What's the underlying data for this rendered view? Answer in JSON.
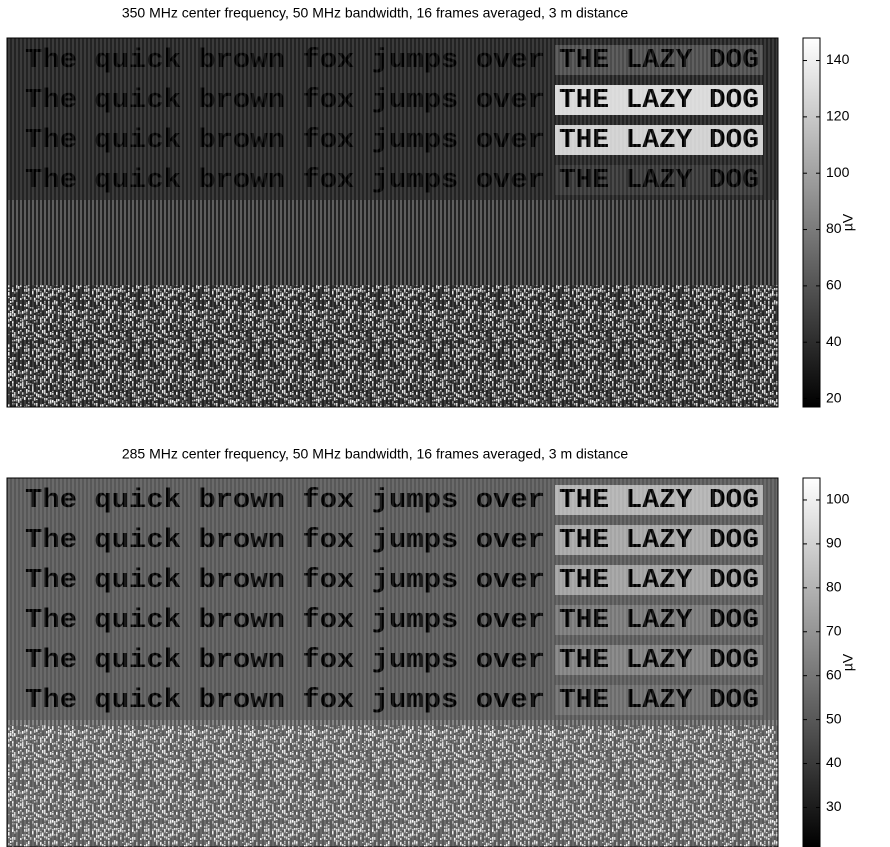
{
  "chart_data": [
    {
      "type": "heatmap",
      "title": "350 MHz center frequency, 50 MHz bandwidth, 16 frames averaged, 3 m distance",
      "colormap": "gray",
      "clim": [
        17,
        148
      ],
      "cticks": [
        20,
        40,
        60,
        80,
        100,
        120,
        140
      ],
      "colorbar_label": "µV",
      "background_level": 35,
      "rows": [
        {
          "text": "The quick brown fox jumps over",
          "caps": "THE LAZY DOG",
          "level": 60
        },
        {
          "text": "The quick brown fox jumps over",
          "caps": "THE LAZY DOG",
          "level": 145
        },
        {
          "text": "The quick brown fox jumps over",
          "caps": "THE LAZY DOG",
          "level": 140
        },
        {
          "text": "The quick brown fox jumps over",
          "caps": "THE LAZY DOG",
          "level": 45
        }
      ]
    },
    {
      "type": "heatmap",
      "title": "285 MHz center frequency, 50 MHz bandwidth, 16 frames averaged, 3 m distance",
      "colormap": "gray",
      "clim": [
        21,
        105
      ],
      "cticks": [
        30,
        40,
        50,
        60,
        70,
        80,
        90,
        100
      ],
      "colorbar_label": "µV",
      "background_level": 50,
      "rows": [
        {
          "text": "The quick brown fox jumps over",
          "caps": "THE LAZY DOG",
          "level": 85
        },
        {
          "text": "The quick brown fox jumps over",
          "caps": "THE LAZY DOG",
          "level": 80
        },
        {
          "text": "The quick brown fox jumps over",
          "caps": "THE LAZY DOG",
          "level": 78
        },
        {
          "text": "The quick brown fox jumps over",
          "caps": "THE LAZY DOG",
          "level": 62
        },
        {
          "text": "The quick brown fox jumps over",
          "caps": "THE LAZY DOG",
          "level": 65
        },
        {
          "text": "The quick brown fox jumps over",
          "caps": "THE LAZY DOG",
          "level": 58
        }
      ]
    }
  ]
}
